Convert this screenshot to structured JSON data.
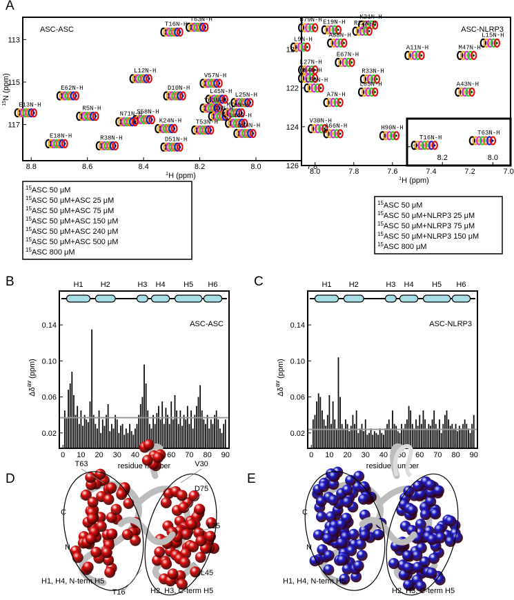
{
  "chart_data": [
    {
      "type": "scatter",
      "panel": "A",
      "annotation": "ASC-ASC",
      "xlabel_sup": "1",
      "xlabel": "H (ppm)",
      "ylabel_sup": "15",
      "ylabel": "N (ppm)",
      "xlim": [
        8.83,
        7.72
      ],
      "ylim": [
        118.7,
        111.95
      ],
      "xticks": [
        8.8,
        8.6,
        8.4,
        8.2,
        {
          "value": 8,
          "label": "8.0"
        },
        7.8
      ],
      "yticks": [
        113,
        115,
        117
      ],
      "x": [
        8.27,
        8.18,
        8.38,
        8.26,
        8.13,
        8.11,
        8.02,
        8.79,
        8.64,
        8.37,
        8.13,
        8.1,
        8.05,
        8.04,
        8.57,
        8.43,
        8.29,
        8.16,
        8.01,
        8.68,
        8.5,
        8.27
      ],
      "y": [
        112.65,
        112.42,
        114.84,
        115.65,
        115.06,
        115.81,
        115.97,
        116.45,
        115.65,
        116.77,
        116.23,
        116.61,
        116.45,
        116.94,
        116.61,
        116.87,
        117.19,
        117.26,
        117.42,
        117.9,
        118.0,
        118.06
      ],
      "point_labels": [
        "T16N-H",
        "T63N-H",
        "L12N-H",
        "D10N-H",
        "V57N-H",
        "L45N-H",
        "L25N-H",
        "E13N-H",
        "E62N-H",
        "S58N-H",
        "Y60N-H",
        "D6N-H",
        "M76N-H",
        "L44N-H",
        "R5N-H",
        "N71N-H",
        "K24N-H",
        "T53N-H",
        "D54N-H",
        "E18N-H",
        "R38N-H",
        "D51N-H"
      ],
      "legend_sup": "15",
      "legend": [
        {
          "name": "ASC 50 μM",
          "color": "#000000"
        },
        {
          "name": "ASC 50 μM+ASC 25 μM",
          "color": "#f5a623"
        },
        {
          "name": "ASC 50 μM+ASC 75 μM",
          "color": "#cc33cc"
        },
        {
          "name": "ASC 50 μM+ASC 150 μM",
          "color": "#33cc33"
        },
        {
          "name": "ASC 50 μM+ASC 240 μM",
          "color": "#f06a20"
        },
        {
          "name": "ASC 50 μM+ASC 500 μM",
          "color": "#2222cc"
        },
        {
          "name": "ASC 800 μM",
          "color": "#e01010"
        }
      ]
    },
    {
      "type": "scatter",
      "annotation": "ASC-NLRP3",
      "xlabel_sup": "1",
      "xlabel": "H (ppm)",
      "xlim": [
        8.07,
        6.99
      ],
      "ylim": [
        126,
        118.35
      ],
      "xticks": [
        {
          "value": 8,
          "label": "8.0"
        },
        7.8,
        7.6,
        7.4,
        7.2,
        {
          "value": 7,
          "label": "7.0"
        }
      ],
      "yticks": [
        120,
        122,
        124,
        126
      ],
      "x": [
        8.0,
        7.88,
        7.69,
        7.72,
        7.85,
        8.04,
        7.45,
        7.18,
        7.06,
        7.81,
        8.0,
        8.0,
        7.97,
        7.68,
        7.19,
        7.87,
        7.69,
        7.95,
        7.87,
        7.58
      ],
      "y": [
        118.89,
        119.0,
        118.75,
        119.07,
        119.68,
        119.89,
        120.32,
        120.32,
        119.68,
        120.68,
        121.07,
        121.5,
        122.0,
        121.54,
        122.21,
        122.75,
        122.21,
        124.1,
        124.36,
        124.46
      ],
      "point_labels": [
        "Q79N-H",
        "E19N-H",
        "K21N-H",
        "R22N-H",
        "A88N-H",
        "L9N-H",
        "A11N-H",
        "M47N-H",
        "L15N-H",
        "E67N-H",
        "L27N-H",
        "Q84N-H",
        "L50N-H",
        "R33N-H",
        "A43N-H",
        "A7N-H",
        "L85N-H",
        "V30N-H",
        "A66N-H",
        "H90N-H"
      ],
      "legend_sup": "15",
      "legend": [
        {
          "name": "ASC 50 μM",
          "color": "#000000"
        },
        {
          "name": "ASC 50 μM+NLRP3 25 μM",
          "color": "#f5a623"
        },
        {
          "name": "ASC 50 μM+NLRP3 75 μM",
          "color": "#cc33cc"
        },
        {
          "name": "ASC 50 μM+NLRP3 150 μM",
          "color": "#33cc33"
        },
        {
          "name": "ASC 800 μM",
          "color": "#e01010"
        }
      ]
    },
    {
      "type": "scatter",
      "xlim": [
        8.34,
        7.93
      ],
      "ylim": [
        113.4,
        112.4
      ],
      "xticks": [
        8.2,
        {
          "value": 8,
          "label": "8.0"
        }
      ],
      "yticks": [
        113
      ],
      "x": [
        8.23,
        8.0
      ],
      "y": [
        112.97,
        112.87
      ],
      "point_labels": [
        "T16N-H",
        "T63N-H"
      ]
    },
    {
      "type": "bar",
      "panel": "B",
      "annotation": "ASC-ASC",
      "color": "#111111",
      "xlabel": "residue number",
      "ylabel": "Δδ",
      "ylabel_sup": "av",
      "ylabel_unit": "(ppm)",
      "xlim": [
        -2,
        92
      ],
      "ylim": [
        0.003,
        0.16
      ],
      "xticks": [
        0,
        10,
        20,
        30,
        40,
        50,
        60,
        70,
        80,
        90
      ],
      "yticks": [
        0.02,
        0.06,
        {
          "value": 0.1,
          "label": "0.10"
        },
        0.14
      ],
      "threshold": 0.037,
      "helices": [
        {
          "name": "H1",
          "start": 2,
          "end": 15
        },
        {
          "name": "H2",
          "start": 18,
          "end": 29
        },
        {
          "name": "H3",
          "start": 41,
          "end": 47
        },
        {
          "name": "H4",
          "start": 49,
          "end": 59
        },
        {
          "name": "H5",
          "start": 62,
          "end": 77
        },
        {
          "name": "H6",
          "start": 78,
          "end": 88
        }
      ],
      "x": [
        1,
        2,
        3,
        4,
        5,
        6,
        7,
        8,
        9,
        10,
        11,
        12,
        13,
        14,
        15,
        16,
        17,
        18,
        19,
        20,
        21,
        22,
        23,
        24,
        25,
        26,
        27,
        28,
        29,
        30,
        31,
        32,
        33,
        34,
        35,
        36,
        37,
        38,
        39,
        40,
        41,
        42,
        43,
        44,
        45,
        46,
        47,
        48,
        49,
        50,
        51,
        52,
        53,
        54,
        55,
        56,
        57,
        58,
        59,
        60,
        61,
        62,
        63,
        64,
        65,
        66,
        67,
        68,
        69,
        70,
        71,
        72,
        73,
        74,
        75,
        76,
        77,
        78,
        79,
        80,
        81,
        82,
        83,
        84,
        85,
        86,
        87,
        88,
        89,
        90
      ],
      "values": [
        0.045,
        0.036,
        0.068,
        0.075,
        0.088,
        0.062,
        0.04,
        0.05,
        0.03,
        0.045,
        0.028,
        0.04,
        0.035,
        0.032,
        0.055,
        0.135,
        0.04,
        0.03,
        0.025,
        0.045,
        0.02,
        0.035,
        0.028,
        0.04,
        0.052,
        0.022,
        0.03,
        0.025,
        0.04,
        0.035,
        0.02,
        0.028,
        0.03,
        0.018,
        0.025,
        0.02,
        0.03,
        0.022,
        0.018,
        0.025,
        0.03,
        0.04,
        0.052,
        0.06,
        0.096,
        0.075,
        0.045,
        0.03,
        0.025,
        0.04,
        0.03,
        0.042,
        0.05,
        0.035,
        0.055,
        0.03,
        0.048,
        0.04,
        0.03,
        0.055,
        0.035,
        0.062,
        0.045,
        0.03,
        0.045,
        0.028,
        0.04,
        0.035,
        0.05,
        0.03,
        0.045,
        0.025,
        0.04,
        0.05,
        0.06,
        0.073,
        0.045,
        0.035,
        0.03,
        0.04,
        0.025,
        0.035,
        0.03,
        0.04,
        0.045,
        0.035,
        0.025,
        0.02,
        0.03,
        0.035
      ]
    },
    {
      "type": "bar",
      "panel": "C",
      "annotation": "ASC-NLRP3",
      "color": "#111111",
      "xlabel": "residue number",
      "ylabel": "Δδ",
      "ylabel_sup": "av",
      "ylabel_unit": "(ppm)",
      "xlim": [
        -2,
        92
      ],
      "ylim": [
        0.003,
        0.16
      ],
      "xticks": [
        0,
        10,
        20,
        30,
        40,
        50,
        60,
        70,
        80,
        90
      ],
      "yticks": [
        0.02,
        0.06,
        {
          "value": 0.1,
          "label": "0.10"
        },
        0.14
      ],
      "threshold": 0.024,
      "helices": [
        {
          "name": "H1",
          "start": 2,
          "end": 15
        },
        {
          "name": "H2",
          "start": 18,
          "end": 29
        },
        {
          "name": "H3",
          "start": 41,
          "end": 47
        },
        {
          "name": "H4",
          "start": 49,
          "end": 59
        },
        {
          "name": "H5",
          "start": 62,
          "end": 77
        },
        {
          "name": "H6",
          "start": 78,
          "end": 88
        }
      ],
      "x": [
        1,
        2,
        3,
        4,
        5,
        6,
        7,
        8,
        9,
        10,
        11,
        12,
        13,
        14,
        15,
        16,
        17,
        18,
        19,
        20,
        21,
        22,
        23,
        24,
        25,
        26,
        27,
        28,
        29,
        30,
        31,
        32,
        33,
        34,
        35,
        36,
        37,
        38,
        39,
        40,
        41,
        42,
        43,
        44,
        45,
        46,
        47,
        48,
        49,
        50,
        51,
        52,
        53,
        54,
        55,
        56,
        57,
        58,
        59,
        60,
        61,
        62,
        63,
        64,
        65,
        66,
        67,
        68,
        69,
        70,
        71,
        72,
        73,
        74,
        75,
        76,
        77,
        78,
        79,
        80,
        81,
        82,
        83,
        84,
        85,
        86,
        87,
        88,
        89,
        90
      ],
      "values": [
        0.035,
        0.04,
        0.055,
        0.064,
        0.06,
        0.045,
        0.035,
        0.028,
        0.04,
        0.062,
        0.03,
        0.055,
        0.035,
        0.025,
        0.104,
        0.06,
        0.03,
        0.025,
        0.035,
        0.03,
        0.022,
        0.028,
        0.04,
        0.03,
        0.045,
        0.02,
        0.025,
        0.03,
        0.022,
        0.035,
        0.018,
        0.02,
        0.025,
        0.018,
        0.022,
        0.02,
        0.018,
        0.025,
        0.02,
        0.018,
        0.025,
        0.03,
        0.035,
        0.025,
        0.045,
        0.03,
        0.028,
        0.022,
        0.02,
        0.03,
        0.025,
        0.03,
        0.035,
        0.05,
        0.045,
        0.03,
        0.025,
        0.035,
        0.028,
        0.04,
        0.03,
        0.045,
        0.035,
        0.025,
        0.03,
        0.028,
        0.035,
        0.045,
        0.03,
        0.025,
        0.035,
        0.02,
        0.03,
        0.04,
        0.045,
        0.035,
        0.028,
        0.03,
        0.025,
        0.03,
        0.022,
        0.028,
        0.025,
        0.03,
        0.035,
        0.03,
        0.025,
        0.02,
        0.03,
        0.04
      ]
    }
  ],
  "structures": [
    {
      "panel": "D",
      "color": "#e01010",
      "labels": [
        "T63",
        "V30",
        "D75",
        "L25",
        "L45",
        "T16"
      ],
      "termini": [
        "C",
        "N"
      ],
      "captions": [
        "H1, H4, N-term H5",
        "H2, H3, C-term H5"
      ]
    },
    {
      "panel": "E",
      "color": "#1a1acc",
      "termini": [
        "C",
        "N"
      ],
      "captions": [
        "H1, H4, N-term H5",
        "H2, H3, C-term H5"
      ]
    }
  ]
}
